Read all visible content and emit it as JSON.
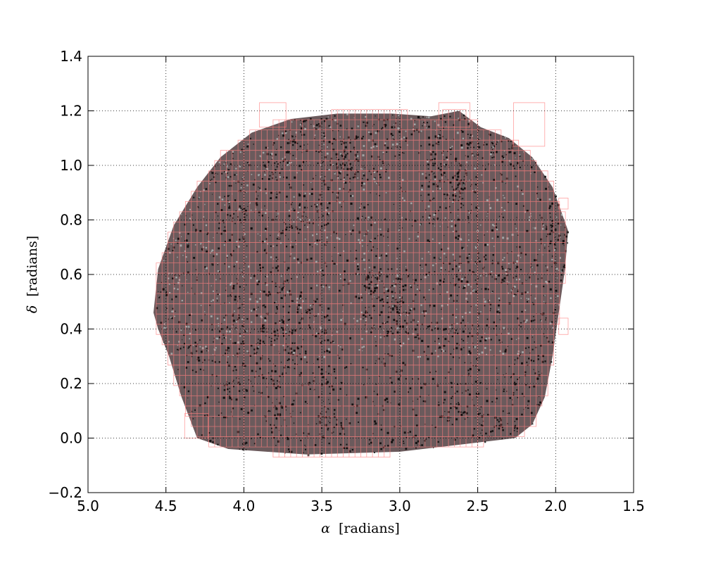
{
  "chart_data": {
    "type": "scatter",
    "title": "",
    "xlabel": {
      "symbol": "α",
      "unit": "[radians]"
    },
    "ylabel": {
      "symbol": "δ",
      "unit": "[radians]"
    },
    "xlim": [
      5.0,
      1.5
    ],
    "ylim": [
      -0.2,
      1.4
    ],
    "x_inverted": true,
    "grid": true,
    "xticks": [
      5.0,
      4.5,
      4.0,
      3.5,
      3.0,
      2.5,
      2.0,
      1.5
    ],
    "xtick_labels": [
      "5.0",
      "4.5",
      "4.0",
      "3.5",
      "3.0",
      "2.5",
      "2.0",
      "1.5"
    ],
    "yticks": [
      -0.2,
      0.0,
      0.2,
      0.4,
      0.6,
      0.8,
      1.0,
      1.2,
      1.4
    ],
    "ytick_labels": [
      "−0.2",
      "0.0",
      "0.2",
      "0.4",
      "0.6",
      "0.8",
      "1.0",
      "1.2",
      "1.4"
    ],
    "series": [
      {
        "kind": "points",
        "color": "#000000",
        "outline_alpha_ra_dec": [
          [
            4.58,
            0.46
          ],
          [
            4.55,
            0.62
          ],
          [
            4.45,
            0.78
          ],
          [
            4.3,
            0.92
          ],
          [
            4.15,
            1.03
          ],
          [
            3.95,
            1.12
          ],
          [
            3.7,
            1.17
          ],
          [
            3.4,
            1.19
          ],
          [
            3.05,
            1.19
          ],
          [
            2.8,
            1.18
          ],
          [
            2.62,
            1.2
          ],
          [
            2.48,
            1.14
          ],
          [
            2.3,
            1.1
          ],
          [
            2.15,
            1.03
          ],
          [
            2.02,
            0.92
          ],
          [
            1.92,
            0.76
          ],
          [
            1.94,
            0.62
          ],
          [
            1.98,
            0.46
          ],
          [
            2.02,
            0.3
          ],
          [
            2.07,
            0.15
          ],
          [
            2.15,
            0.05
          ],
          [
            2.26,
            0.0
          ],
          [
            3.0,
            -0.05
          ],
          [
            3.6,
            -0.06
          ],
          [
            4.1,
            -0.04
          ],
          [
            4.3,
            0.0
          ],
          [
            4.4,
            0.15
          ],
          [
            4.48,
            0.3
          ],
          [
            4.55,
            0.4
          ]
        ]
      },
      {
        "kind": "cells",
        "color": "#ff7f7f",
        "cell_size": 0.0375,
        "big_boxes": [
          [
            3.9,
            3.73,
            1.14,
            1.23
          ],
          [
            2.27,
            2.07,
            1.07,
            1.23
          ],
          [
            2.75,
            2.55,
            1.14,
            1.23
          ],
          [
            4.38,
            4.23,
            0.0,
            0.09
          ],
          [
            1.98,
            1.92,
            0.84,
            0.88
          ],
          [
            1.98,
            1.92,
            0.38,
            0.44
          ]
        ]
      }
    ]
  }
}
